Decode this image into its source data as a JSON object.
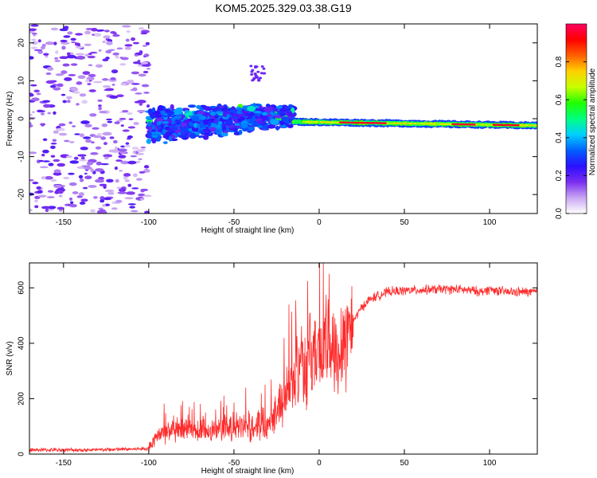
{
  "title": "KOM5.2025.329.03.38.G19",
  "chart_data": [
    {
      "type": "heatmap",
      "xlabel": "Height of straight line (km)",
      "ylabel": "Frequency (Hz)",
      "xlim": [
        -170,
        128
      ],
      "ylim": [
        -25,
        25
      ],
      "xticks": [
        -150,
        -100,
        -50,
        0,
        50,
        100
      ],
      "yticks": [
        -20,
        -10,
        0,
        10,
        20
      ],
      "colorbar": {
        "label": "Normalized spectral amplitude",
        "range": [
          0,
          1
        ],
        "ticks": [
          "0.0",
          "0.2",
          "0.4",
          "0.6",
          "0.8"
        ],
        "colors": [
          "#ffffff",
          "#c9a6f2",
          "#7a2cf0",
          "#2a10ff",
          "#0060ff",
          "#00d0ff",
          "#00ff80",
          "#20ff00",
          "#c8ff00",
          "#ffd000",
          "#ff6000",
          "#ff0000",
          "#ff0060"
        ]
      },
      "regions": [
        {
          "name": "sparse noise",
          "x": [
            -170,
            -100
          ],
          "freq_range": [
            -25,
            25
          ],
          "amplitude": 0.12
        },
        {
          "name": "noisy band",
          "x": [
            -100,
            -15
          ],
          "center_freq": [
            -2,
            1
          ],
          "width_hz": [
            9,
            5
          ],
          "amplitude": 0.3
        },
        {
          "name": "signal ridge",
          "x": [
            -15,
            128
          ],
          "center_freq": [
            -0.8,
            -1.8
          ],
          "width_hz": 1.5,
          "amplitude": 0.95
        }
      ]
    },
    {
      "type": "line",
      "xlabel": "Height of straight line (km)",
      "ylabel": "SNR (v/v)",
      "xlim": [
        -170,
        128
      ],
      "ylim": [
        0,
        690
      ],
      "xticks": [
        -150,
        -100,
        -50,
        0,
        50,
        100
      ],
      "yticks": [
        0,
        200,
        400,
        600
      ],
      "color": "#ff2a2a",
      "series": [
        {
          "name": "SNR",
          "x": [
            -170,
            -150,
            -130,
            -110,
            -100,
            -96,
            -90,
            -80,
            -70,
            -60,
            -50,
            -40,
            -30,
            -25,
            -20,
            -15,
            -12,
            -10,
            -8,
            -5,
            0,
            5,
            10,
            15,
            20,
            25,
            30,
            40,
            50,
            60,
            70,
            80,
            90,
            95,
            100,
            110,
            120,
            128
          ],
          "y": [
            15,
            15,
            15,
            18,
            20,
            60,
            80,
            85,
            80,
            90,
            95,
            100,
            120,
            160,
            220,
            250,
            350,
            380,
            300,
            360,
            380,
            390,
            380,
            430,
            480,
            530,
            560,
            585,
            590,
            592,
            595,
            595,
            590,
            585,
            595,
            585,
            585,
            585
          ]
        }
      ]
    }
  ]
}
